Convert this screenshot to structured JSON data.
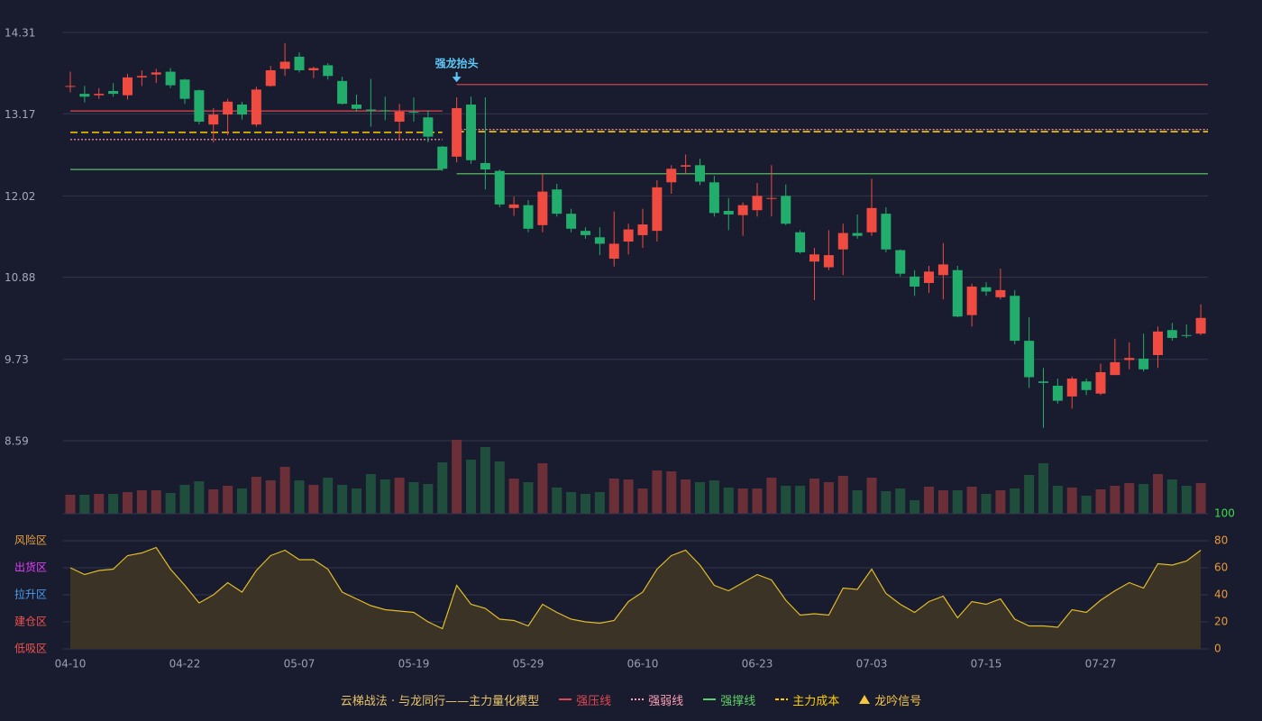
{
  "chart_data": [
    {
      "type": "candlestick",
      "categories": [
        "04-10",
        null,
        null,
        null,
        null,
        null,
        null,
        null,
        "04-22",
        null,
        null,
        null,
        null,
        null,
        null,
        null,
        "05-07",
        null,
        null,
        null,
        null,
        null,
        null,
        null,
        "05-19",
        null,
        null,
        null,
        null,
        null,
        null,
        null,
        "05-29",
        null,
        null,
        null,
        null,
        null,
        null,
        null,
        "06-10",
        null,
        null,
        null,
        null,
        null,
        null,
        null,
        "06-23",
        null,
        null,
        null,
        null,
        null,
        null,
        null,
        "07-03",
        null,
        null,
        null,
        null,
        null,
        null,
        null,
        "07-15",
        null,
        null,
        null,
        null,
        null,
        null,
        null,
        "07-27",
        null,
        null,
        null,
        null,
        null,
        null,
        null
      ],
      "open": [
        13.55,
        13.45,
        13.43,
        13.49,
        13.43,
        13.68,
        13.72,
        13.76,
        13.65,
        13.5,
        13.02,
        13.16,
        13.3,
        13.02,
        13.56,
        13.8,
        13.97,
        13.78,
        13.85,
        13.63,
        13.3,
        13.23,
        13.22,
        13.06,
        13.2,
        13.12,
        12.71,
        12.57,
        13.3,
        12.48,
        12.37,
        11.85,
        11.89,
        11.61,
        12.11,
        11.77,
        11.53,
        11.44,
        11.14,
        11.38,
        11.47,
        11.53,
        12.21,
        12.43,
        12.45,
        12.21,
        11.81,
        11.75,
        11.82,
        11.98,
        12.02,
        11.51,
        11.1,
        11.02,
        11.27,
        11.5,
        11.51,
        11.77,
        11.26,
        10.89,
        10.8,
        10.91,
        10.98,
        10.35,
        10.74,
        10.6,
        10.62,
        9.99,
        9.42,
        9.36,
        9.21,
        9.42,
        9.25,
        9.51,
        9.72,
        9.74,
        9.79,
        10.14,
        10.07,
        10.09
      ],
      "high": [
        13.76,
        13.56,
        13.53,
        13.6,
        13.73,
        13.78,
        13.8,
        13.81,
        13.66,
        13.51,
        13.25,
        13.38,
        13.34,
        13.55,
        13.84,
        14.16,
        14.03,
        13.83,
        13.88,
        13.69,
        13.44,
        13.66,
        13.41,
        13.31,
        13.4,
        13.22,
        12.72,
        13.4,
        13.41,
        13.4,
        12.39,
        12.01,
        11.96,
        12.34,
        12.19,
        11.84,
        11.58,
        11.58,
        11.8,
        11.63,
        11.84,
        12.24,
        12.45,
        12.6,
        12.54,
        12.3,
        11.99,
        11.93,
        12.2,
        12.45,
        12.18,
        11.54,
        11.29,
        11.54,
        11.63,
        11.76,
        12.26,
        11.86,
        11.27,
        10.98,
        11.04,
        11.36,
        11.04,
        10.79,
        10.81,
        11.0,
        10.7,
        10.32,
        9.61,
        9.46,
        9.49,
        9.46,
        9.67,
        10.02,
        9.97,
        10.09,
        10.19,
        10.24,
        10.22,
        10.5
      ],
      "low": [
        13.47,
        13.33,
        13.38,
        13.41,
        13.37,
        13.56,
        13.6,
        13.53,
        13.31,
        13.02,
        12.77,
        12.87,
        13.09,
        12.99,
        13.55,
        13.7,
        13.75,
        13.67,
        13.65,
        13.3,
        13.2,
        12.99,
        13.08,
        12.81,
        13.06,
        12.77,
        12.37,
        12.49,
        12.47,
        12.11,
        11.86,
        11.74,
        11.51,
        11.51,
        11.73,
        11.51,
        11.42,
        11.19,
        11.03,
        11.2,
        11.29,
        11.38,
        12.05,
        12.33,
        12.17,
        11.73,
        11.54,
        11.46,
        11.73,
        11.73,
        11.61,
        11.21,
        10.56,
        10.98,
        10.91,
        11.42,
        11.46,
        11.23,
        10.89,
        10.62,
        10.66,
        10.57,
        10.32,
        10.19,
        10.62,
        10.57,
        9.94,
        9.33,
        8.77,
        9.11,
        9.04,
        9.23,
        9.23,
        9.51,
        9.59,
        9.56,
        9.61,
        9.99,
        10.03,
        10.07
      ],
      "close": [
        13.56,
        13.41,
        13.45,
        13.45,
        13.68,
        13.7,
        13.75,
        13.57,
        13.38,
        13.06,
        13.16,
        13.34,
        13.16,
        13.51,
        13.78,
        13.9,
        13.78,
        13.81,
        13.7,
        13.31,
        13.24,
        13.21,
        13.21,
        13.2,
        13.19,
        12.85,
        12.4,
        13.25,
        12.52,
        12.39,
        11.9,
        11.9,
        11.56,
        12.08,
        11.77,
        11.56,
        11.47,
        11.35,
        11.35,
        11.55,
        11.62,
        12.14,
        12.4,
        12.45,
        12.22,
        11.78,
        11.76,
        11.89,
        12.02,
        11.99,
        11.63,
        11.23,
        11.2,
        11.19,
        11.5,
        11.46,
        11.85,
        11.27,
        10.93,
        10.75,
        10.96,
        11.06,
        10.33,
        10.75,
        10.68,
        10.7,
        9.99,
        9.48,
        9.4,
        9.15,
        9.46,
        9.3,
        9.55,
        9.69,
        9.75,
        9.59,
        10.12,
        10.03,
        10.06,
        10.31
      ],
      "up_color": "#ef4b40",
      "down_color": "#23ad6c",
      "ylim": [
        8.59,
        14.31
      ],
      "yticks": [
        14.31,
        13.17,
        12.02,
        10.88,
        9.73,
        8.59
      ],
      "grid": true,
      "levels": [
        {
          "name": "强压线",
          "color": "#e0484f",
          "style": "solid",
          "segments": [
            {
              "x": [
                0,
                26
              ],
              "value": 13.21
            },
            {
              "x": [
                27,
                79
              ],
              "value": 13.58
            }
          ]
        },
        {
          "name": "强弱线",
          "color": "#ff9fb5",
          "style": "dotted",
          "segments": [
            {
              "x": [
                0,
                26
              ],
              "value": 12.81
            },
            {
              "x": [
                27,
                79
              ],
              "value": 12.95
            }
          ]
        },
        {
          "name": "强撑线",
          "color": "#5fd068",
          "style": "solid",
          "segments": [
            {
              "x": [
                0,
                26
              ],
              "value": 12.39
            },
            {
              "x": [
                27,
                79
              ],
              "value": 12.33
            }
          ]
        },
        {
          "name": "主力成本",
          "color": "#ffcc00",
          "style": "dashed",
          "segments": [
            {
              "x": [
                0,
                26
              ],
              "value": 12.91
            },
            {
              "x": [
                27,
                79
              ],
              "value": 12.92
            }
          ]
        }
      ],
      "signal": {
        "name": "龙吟信号",
        "color": "#f5c542",
        "x": 27,
        "label": "强龙抬头",
        "label_color": "#5ec8f7"
      }
    },
    {
      "type": "bar",
      "values": [
        21,
        21,
        22,
        22,
        24,
        26,
        26,
        23,
        32,
        36,
        27,
        31,
        28,
        41,
        37,
        52,
        37,
        32,
        40,
        32,
        28,
        44,
        38,
        40,
        35,
        33,
        57,
        82,
        60,
        74,
        58,
        39,
        35,
        56,
        29,
        24,
        22,
        24,
        39,
        38,
        28,
        48,
        47,
        38,
        35,
        37,
        29,
        28,
        28,
        40,
        31,
        31,
        39,
        35,
        42,
        26,
        40,
        25,
        28,
        15,
        30,
        26,
        26,
        30,
        22,
        26,
        28,
        43,
        56,
        31,
        29,
        20,
        27,
        31,
        34,
        33,
        44,
        38,
        31,
        34
      ],
      "up_color": "#6b2f38",
      "down_color": "#1f4f3c"
    },
    {
      "type": "area",
      "values": [
        60,
        55,
        58,
        59,
        69,
        71,
        75,
        59,
        47,
        34,
        40,
        49,
        42,
        58,
        69,
        73,
        66,
        66,
        59,
        42,
        37,
        32,
        29,
        28,
        27,
        20,
        15,
        47,
        33,
        30,
        22,
        21,
        17,
        33,
        27,
        22,
        20,
        19,
        21,
        35,
        42,
        59,
        69,
        73,
        62,
        47,
        43,
        49,
        55,
        51,
        36,
        25,
        26,
        25,
        45,
        44,
        59,
        41,
        33,
        27,
        35,
        39,
        23,
        35,
        33,
        37,
        22,
        17,
        17,
        16,
        29,
        27,
        36,
        43,
        49,
        45,
        63,
        62,
        65,
        73
      ],
      "color": "#e0bb2a",
      "fill": "#3a3326",
      "ylim": [
        0,
        100
      ],
      "yticks": [
        0,
        20,
        40,
        60,
        80,
        100
      ],
      "ytick_colors": [
        "#e89a3c",
        "#e89a3c",
        "#e89a3c",
        "#e89a3c",
        "#e89a3c",
        "#3ddc4a"
      ],
      "zones": [
        {
          "value": 80,
          "label": "风险区",
          "color": "#e8a13c"
        },
        {
          "value": 60,
          "label": "出货区",
          "color": "#e040fb"
        },
        {
          "value": 40,
          "label": "拉升区",
          "color": "#4a9cf0"
        },
        {
          "value": 20,
          "label": "建仓区",
          "color": "#ef5350"
        },
        {
          "value": 0,
          "label": "低吸区",
          "color": "#ef5350"
        }
      ]
    }
  ],
  "legend": {
    "title": "云梯战法 · 与龙同行——主力量化模型",
    "title_color": "#e8c46a"
  }
}
